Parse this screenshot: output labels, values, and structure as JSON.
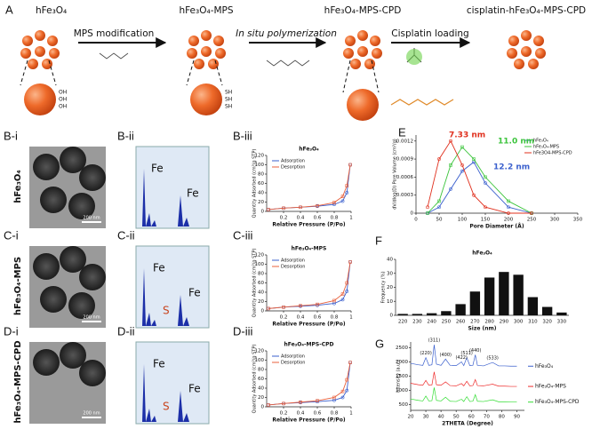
{
  "figure": {
    "scheme": {
      "label": "A",
      "s1": "hFe₃O₄",
      "a1": "MPS modification",
      "s2": "hFe₃O₄-MPS",
      "a2": "In situ polymerization",
      "s3": "hFe₃O₄-MPS-CPD",
      "a3": "Cisplatin loading",
      "s4": "cisplatin-hFe₃O₄-MPS-CPD",
      "oh": [
        "OH",
        "OH",
        "OH"
      ],
      "sh": [
        "SH",
        "SH",
        "SH"
      ]
    },
    "rows": [
      {
        "label": "B-i",
        "sample": "hFe₃O₄",
        "eds_label": "B-ii",
        "iso_label": "B-iii",
        "scale": "200 nm",
        "eds": [
          "Fe",
          "Fe"
        ]
      },
      {
        "label": "C-i",
        "sample": "hFe₃O₄-MPS",
        "eds_label": "C-ii",
        "iso_label": "C-iii",
        "scale": "200 nm",
        "eds": [
          "Fe",
          "S",
          "Fe"
        ]
      },
      {
        "label": "D-i",
        "sample": "hFe₃O₄-MPS-CPD",
        "eds_label": "D-ii",
        "iso_label": "D-iii",
        "scale": "200 nm",
        "eds": [
          "Fe",
          "S",
          "Fe"
        ]
      }
    ],
    "labels": {
      "e": "E",
      "f": "F",
      "g": "G"
    }
  },
  "chart_data": [
    {
      "type": "line",
      "title": "hFe₃O₄",
      "xlabel": "Relative Pressure (P/Po)",
      "ylabel": "Quantity Adsorbed (cm³/g STP)",
      "x": [
        0.02,
        0.2,
        0.4,
        0.6,
        0.8,
        0.9,
        0.95,
        0.99
      ],
      "series": [
        {
          "name": "Adsorption",
          "color": "#3a5fcd",
          "values": [
            4,
            7,
            9,
            11,
            15,
            22,
            40,
            100
          ]
        },
        {
          "name": "Desorption",
          "color": "#e8603c",
          "values": [
            4,
            7,
            9,
            12,
            19,
            32,
            55,
            100
          ]
        }
      ],
      "xlim": [
        0,
        1
      ],
      "xticks": [
        0.2,
        0.4,
        0.6,
        0.8,
        1
      ],
      "ylim": [
        0,
        120
      ],
      "yticks": [
        0,
        20,
        40,
        60,
        80,
        100,
        120
      ],
      "markers": true,
      "legend": "upper-left"
    },
    {
      "type": "line",
      "title": "hFe₃O₄-MPS",
      "xlabel": "Relative Pressure (P/Po)",
      "ylabel": "Quantity Adsorbed (cm³/g STP)",
      "x": [
        0.02,
        0.2,
        0.4,
        0.6,
        0.8,
        0.9,
        0.95,
        0.99
      ],
      "series": [
        {
          "name": "Adsorption",
          "color": "#3a5fcd",
          "values": [
            5,
            8,
            10,
            12,
            16,
            24,
            42,
            105
          ]
        },
        {
          "name": "Desorption",
          "color": "#e8603c",
          "values": [
            5,
            8,
            11,
            14,
            22,
            36,
            60,
            105
          ]
        }
      ],
      "xlim": [
        0,
        1
      ],
      "xticks": [
        0.2,
        0.4,
        0.6,
        0.8,
        1
      ],
      "ylim": [
        0,
        120
      ],
      "yticks": [
        0,
        20,
        40,
        60,
        80,
        100,
        120
      ],
      "markers": true,
      "legend": "upper-left"
    },
    {
      "type": "line",
      "title": "hFe₃O₄-MPS-CPD",
      "xlabel": "Relative Pressure (P/Po)",
      "ylabel": "Quantity Adsorbed (cm³/g STP)",
      "x": [
        0.02,
        0.2,
        0.4,
        0.6,
        0.8,
        0.9,
        0.95,
        0.99
      ],
      "series": [
        {
          "name": "Adsorption",
          "color": "#3a5fcd",
          "values": [
            4,
            7,
            9,
            11,
            14,
            20,
            35,
            95
          ]
        },
        {
          "name": "Desorption",
          "color": "#e8603c",
          "values": [
            4,
            7,
            10,
            13,
            20,
            33,
            58,
            95
          ]
        }
      ],
      "xlim": [
        0,
        1
      ],
      "xticks": [
        0.2,
        0.4,
        0.6,
        0.8,
        1
      ],
      "ylim": [
        0,
        120
      ],
      "yticks": [
        0,
        20,
        40,
        60,
        80,
        100,
        120
      ],
      "markers": true,
      "legend": "upper-left"
    },
    {
      "type": "line",
      "xlabel": "Pore Diameter (Å)",
      "ylabel": "dV/dlog(D) Pore Volume (cm³/g)",
      "x": [
        25,
        50,
        75,
        100,
        125,
        150,
        200,
        250
      ],
      "series": [
        {
          "name": "hFe₃O₄",
          "color": "#3a5fcd",
          "values": [
            0,
            0.0001,
            0.0004,
            0.0007,
            0.00085,
            0.0005,
            0.0001,
            0
          ]
        },
        {
          "name": "hFe₃O₄-MPS",
          "color": "#3cc43c",
          "values": [
            0,
            0.0002,
            0.0008,
            0.0011,
            0.0009,
            0.0006,
            0.0002,
            0
          ]
        },
        {
          "name": "hFe3O4-MPS-CPD",
          "color": "#e0301e",
          "values": [
            0.0001,
            0.0009,
            0.0012,
            0.0008,
            0.0003,
            0.0001,
            0,
            0
          ]
        }
      ],
      "xlim": [
        0,
        350
      ],
      "xticks": [
        0,
        50,
        100,
        150,
        200,
        250,
        300,
        350
      ],
      "ylim": [
        0,
        0.0013
      ],
      "yticks": [
        0,
        0.0003,
        0.0006,
        0.0009,
        0.0012
      ],
      "markers": true,
      "legend": "upper-right",
      "annotations": [
        {
          "text": "7.33 nm",
          "color": "#e0301e"
        },
        {
          "text": "11.0 nm",
          "color": "#3cc43c"
        },
        {
          "text": "12.2 nm",
          "color": "#3a5fcd"
        }
      ]
    },
    {
      "type": "bar",
      "title": "hFe₃O₄",
      "xlabel": "Size (nm)",
      "ylabel": "Frequency (%)",
      "categories": [
        "220",
        "230",
        "240",
        "250",
        "260",
        "270",
        "280",
        "290",
        "300",
        "310",
        "320",
        "330"
      ],
      "values": [
        1,
        1,
        1.5,
        3,
        8,
        17,
        27,
        31,
        29,
        13,
        6,
        2
      ],
      "color": "#111111",
      "ylim": [
        0,
        40
      ],
      "yticks": [
        0,
        10,
        20,
        30,
        40
      ]
    },
    {
      "type": "line",
      "xlabel": "2THETA (Degree)",
      "ylabel": "Intensity (a.u.)",
      "x": [
        20,
        25,
        28,
        30,
        32,
        34,
        35.5,
        37,
        40,
        43,
        46,
        50,
        53.5,
        55,
        57,
        59,
        61,
        62.6,
        64,
        68,
        74,
        78,
        82,
        86,
        90
      ],
      "series": [
        {
          "name": "hFe₃O₄",
          "color": "#3a5fcd",
          "values": [
            1950,
            1900,
            1880,
            2150,
            1880,
            1900,
            2600,
            1920,
            1880,
            2100,
            1880,
            1870,
            2000,
            1870,
            2150,
            1870,
            1880,
            2250,
            1880,
            1860,
            1980,
            1860,
            1860,
            1850,
            1850
          ]
        },
        {
          "name": "hFe₃O₄-MPS",
          "color": "#ee2a2a",
          "values": [
            1250,
            1200,
            1180,
            1350,
            1180,
            1190,
            1650,
            1200,
            1180,
            1300,
            1170,
            1160,
            1240,
            1160,
            1320,
            1160,
            1170,
            1380,
            1170,
            1160,
            1220,
            1150,
            1150,
            1140,
            1140
          ]
        },
        {
          "name": "hFe₃O₄-MPS-CPD",
          "color": "#33dd33",
          "values": [
            700,
            650,
            630,
            800,
            630,
            640,
            1100,
            650,
            630,
            760,
            620,
            610,
            690,
            610,
            780,
            610,
            620,
            850,
            620,
            610,
            670,
            600,
            600,
            590,
            590
          ]
        }
      ],
      "xlim": [
        20,
        95
      ],
      "xticks": [
        20,
        30,
        40,
        50,
        60,
        70,
        80,
        90
      ],
      "ylim": [
        300,
        2700
      ],
      "yticks": [
        500,
        1000,
        1500,
        2000,
        2500
      ],
      "markers": false,
      "legend": "line-end",
      "annotations": [
        {
          "text": "(220)",
          "x": 30
        },
        {
          "text": "(311)",
          "x": 35.5
        },
        {
          "text": "(400)",
          "x": 43
        },
        {
          "text": "(422)",
          "x": 53.5
        },
        {
          "text": "(511)",
          "x": 57
        },
        {
          "text": "(440)",
          "x": 62.6
        },
        {
          "text": "(533)",
          "x": 74
        }
      ]
    }
  ]
}
